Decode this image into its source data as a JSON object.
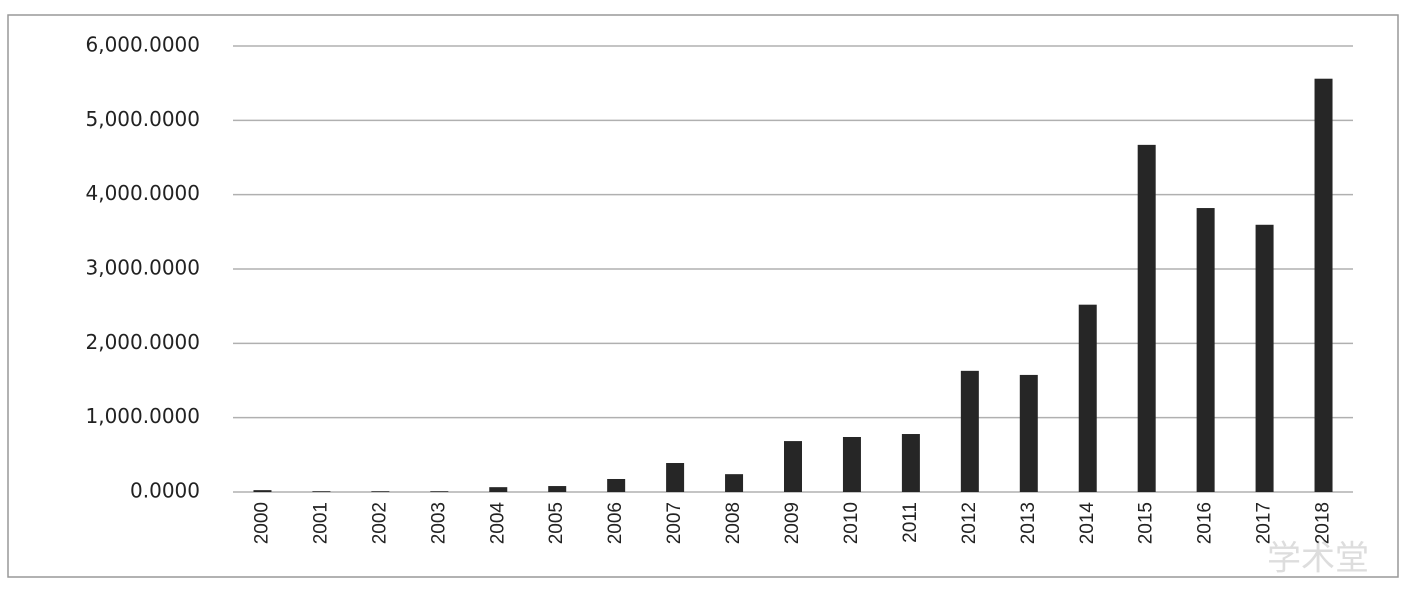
{
  "chart_data": {
    "type": "bar",
    "categories": [
      "2000",
      "2001",
      "2002",
      "2003",
      "2004",
      "2005",
      "2006",
      "2007",
      "2008",
      "2009",
      "2010",
      "2011",
      "2012",
      "2013",
      "2014",
      "2015",
      "2016",
      "2017",
      "2018"
    ],
    "values": [
      25,
      10,
      10,
      10,
      65,
      80,
      175,
      390,
      240,
      685,
      740,
      780,
      1630,
      1575,
      2520,
      4670,
      3820,
      3595,
      5560
    ],
    "color": "#262626",
    "ylim": [
      0,
      6000
    ],
    "yticks": [
      {
        "value": 0,
        "label": "0.0000"
      },
      {
        "value": 1000,
        "label": "1,000.0000"
      },
      {
        "value": 2000,
        "label": "2,000.0000"
      },
      {
        "value": 3000,
        "label": "3,000.0000"
      },
      {
        "value": 4000,
        "label": "4,000.0000"
      },
      {
        "value": 5000,
        "label": "5,000.0000"
      },
      {
        "value": 6000,
        "label": "6,000.0000"
      }
    ],
    "grid": true,
    "watermark": "学术堂"
  }
}
